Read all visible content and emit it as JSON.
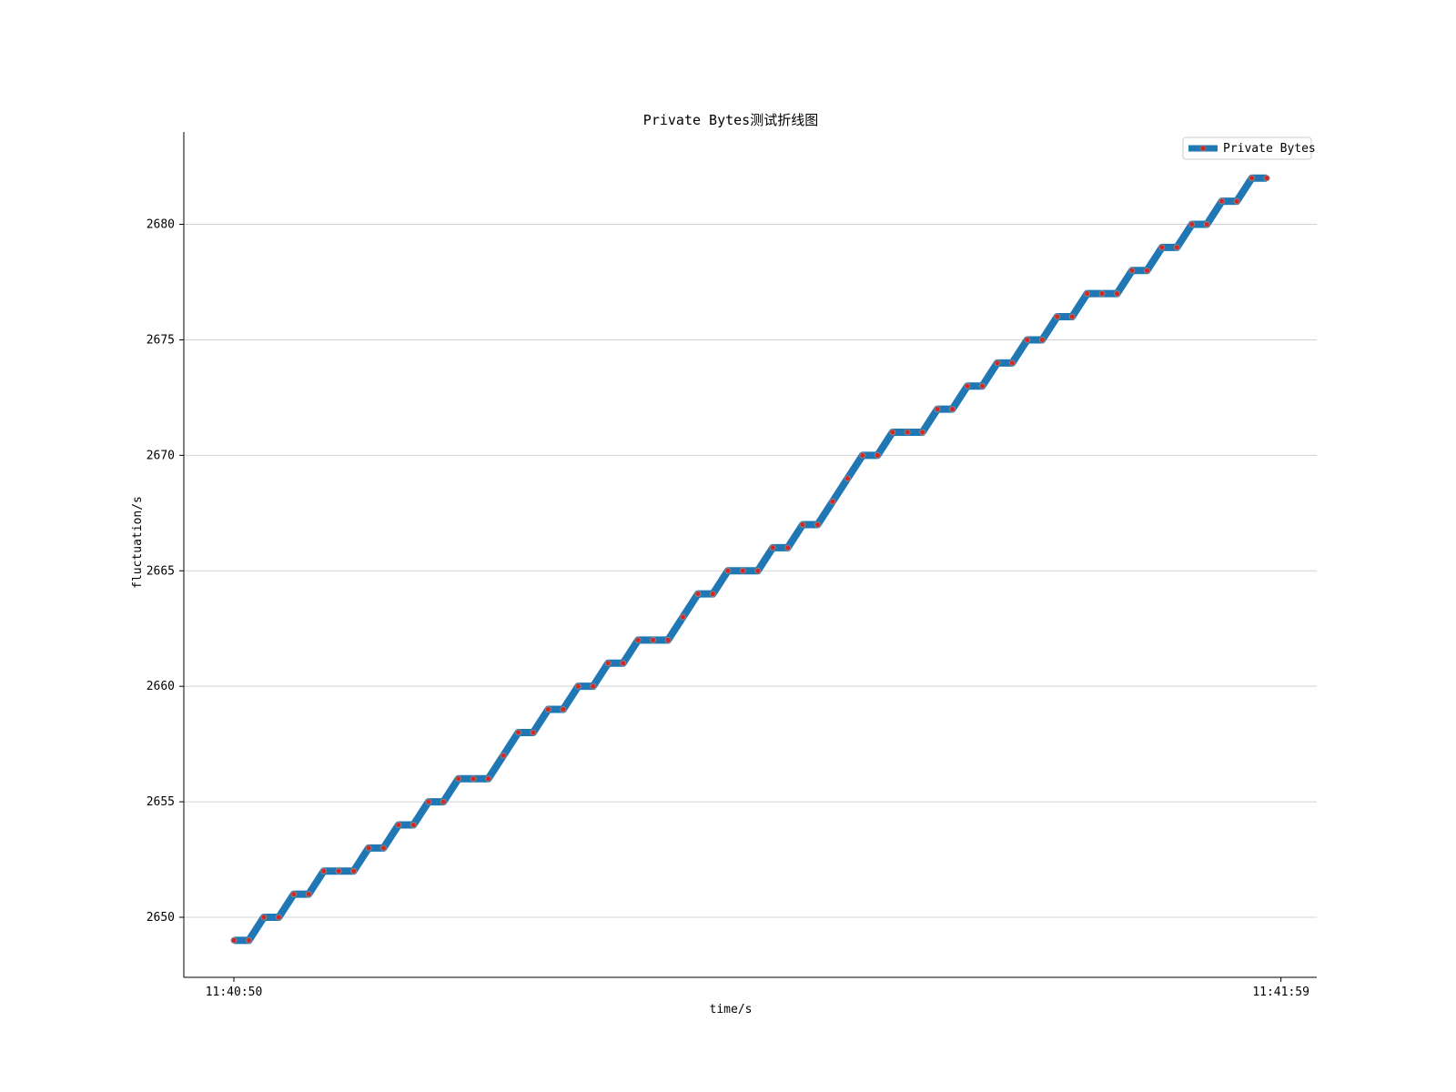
{
  "chart_data": {
    "type": "line",
    "title": "Private Bytes测试折线图",
    "xlabel": "time/s",
    "ylabel": "fluctuation/s",
    "x_tick_labels": [
      "11:40:50",
      "11:41:59"
    ],
    "y_ticks": [
      2650,
      2655,
      2660,
      2665,
      2670,
      2675,
      2680
    ],
    "ylim": [
      2647.4,
      2684.0
    ],
    "grid": "horizontal",
    "legend": "top-right",
    "series": [
      {
        "name": "Private Bytes",
        "color": "#1f77b4",
        "marker_color": "#d62728",
        "values": [
          2649,
          2649,
          2650,
          2650,
          2651,
          2651,
          2652,
          2652,
          2652,
          2653,
          2653,
          2654,
          2654,
          2655,
          2655,
          2656,
          2656,
          2656,
          2657,
          2658,
          2658,
          2659,
          2659,
          2660,
          2660,
          2661,
          2661,
          2662,
          2662,
          2662,
          2663,
          2664,
          2664,
          2665,
          2665,
          2665,
          2666,
          2666,
          2667,
          2667,
          2668,
          2669,
          2670,
          2670,
          2671,
          2671,
          2671,
          2672,
          2672,
          2673,
          2673,
          2674,
          2674,
          2675,
          2675,
          2676,
          2676,
          2677,
          2677,
          2677,
          2678,
          2678,
          2679,
          2679,
          2680,
          2680,
          2681,
          2681,
          2682,
          2682
        ]
      }
    ]
  }
}
